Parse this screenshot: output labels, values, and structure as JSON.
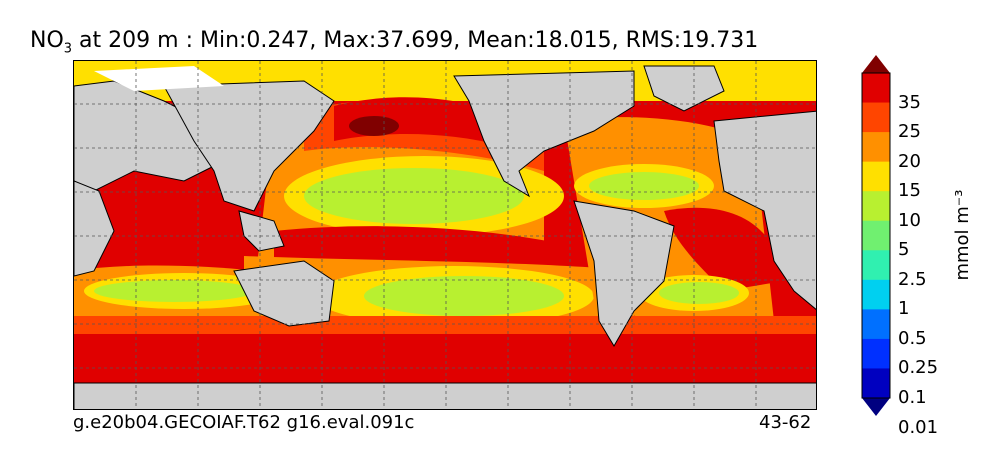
{
  "title": {
    "var": "NO",
    "sub": "3",
    "rest": " at 209 m : Min:0.247, Max:37.699, Mean:18.015, RMS:19.731"
  },
  "footer": {
    "left": "g.e20b04.GECOIAF.T62 g16.eval.091c",
    "right": "43-62"
  },
  "colorbar": {
    "units": "mmol m⁻³",
    "labels": [
      "35",
      "25",
      "20",
      "15",
      "10",
      "5",
      "2.5",
      "1",
      "0.5",
      "0.25",
      "0.1",
      "0.01"
    ],
    "colors": [
      "#800000",
      "#e00000",
      "#ff4500",
      "#ff9000",
      "#ffe000",
      "#b8f030",
      "#70f070",
      "#30f0b0",
      "#00d0f0",
      "#0070ff",
      "#0030ff",
      "#0000c0",
      "#000080"
    ]
  },
  "colors": {
    "land": "#cfcfcf",
    "ice": "#ffffff"
  }
}
